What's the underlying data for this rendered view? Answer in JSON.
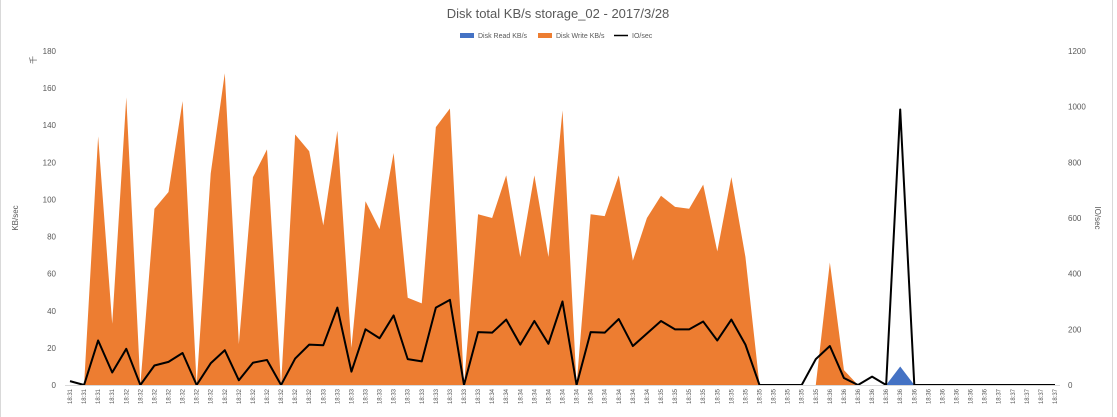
{
  "chart_data": {
    "type": "area",
    "title": "Disk total KB/s storage_02 - 2017/3/28",
    "ylabel": "KB/sec",
    "y2label": "IO/sec",
    "y_unit": "千",
    "ylim": [
      0,
      180
    ],
    "y2lim": [
      0,
      1200
    ],
    "yticks": [
      0,
      20,
      40,
      60,
      80,
      100,
      120,
      140,
      160,
      180
    ],
    "y2ticks": [
      0,
      200,
      400,
      600,
      800,
      1000,
      1200
    ],
    "legend_position": "top",
    "categories": [
      "18:31",
      "18:31",
      "18:31",
      "18:31",
      "18:32",
      "18:32",
      "18:32",
      "18:32",
      "18:32",
      "18:32",
      "18:32",
      "18:32",
      "18:32",
      "18:32",
      "18:32",
      "18:32",
      "18:32",
      "18:32",
      "18:33",
      "18:33",
      "18:33",
      "18:33",
      "18:33",
      "18:33",
      "18:33",
      "18:33",
      "18:33",
      "18:33",
      "18:33",
      "18:33",
      "18:34",
      "18:34",
      "18:34",
      "18:34",
      "18:34",
      "18:34",
      "18:34",
      "18:34",
      "18:34",
      "18:34",
      "18:34",
      "18:34",
      "18:35",
      "18:35",
      "18:35",
      "18:35",
      "18:35",
      "18:35",
      "18:35",
      "18:35",
      "18:35",
      "18:35",
      "18:35",
      "18:35",
      "18:36",
      "18:36",
      "18:36",
      "18:36",
      "18:36",
      "18:36",
      "18:36",
      "18:36",
      "18:36",
      "18:36",
      "18:36",
      "18:36",
      "18:37",
      "18:37",
      "18:37",
      "18:37",
      "18:37"
    ],
    "series": [
      {
        "name": "Disk Read KB/s",
        "type": "area",
        "axis": "left",
        "color": "#4472C4",
        "values": [
          0,
          0,
          0,
          0,
          0,
          0,
          0,
          0,
          0,
          0,
          0,
          0,
          0,
          0,
          0,
          0,
          0,
          0,
          0,
          0,
          0,
          0,
          0,
          0,
          0,
          0,
          0,
          0,
          0,
          0,
          0,
          0,
          0,
          0,
          0,
          0,
          0,
          0,
          0,
          0,
          0,
          0,
          0,
          0,
          0,
          0,
          0,
          0,
          0,
          0,
          0,
          0,
          0,
          0,
          0,
          0,
          0,
          0,
          0,
          0,
          0,
          0,
          0,
          0,
          0,
          0,
          0,
          0,
          0,
          0,
          0
        ]
      },
      {
        "name": "Disk Write KB/s",
        "type": "area",
        "axis": "left",
        "color": "#ED7D31",
        "values": [
          0,
          0,
          134,
          33,
          155,
          0,
          95,
          104,
          153,
          0,
          114,
          168,
          22,
          112,
          127,
          0,
          135,
          126,
          86,
          137,
          20,
          99,
          84,
          125,
          47,
          44,
          139,
          149,
          0,
          92,
          90,
          113,
          69,
          113,
          69,
          148,
          0,
          92,
          91,
          113,
          67,
          90,
          102,
          96,
          95,
          108,
          72,
          112,
          69,
          0,
          0,
          0,
          0,
          0,
          66,
          8,
          0,
          0,
          0,
          0,
          0,
          0,
          0,
          0,
          0,
          0,
          0,
          0,
          0,
          0,
          0
        ]
      },
      {
        "name": "IO/sec",
        "type": "line",
        "axis": "right",
        "color": "#000000",
        "values": [
          14,
          0,
          160,
          45,
          130,
          0,
          70,
          83,
          115,
          0,
          78,
          125,
          17,
          80,
          90,
          0,
          95,
          145,
          143,
          278,
          48,
          200,
          168,
          250,
          93,
          85,
          278,
          306,
          0,
          190,
          188,
          235,
          145,
          230,
          148,
          300,
          0,
          190,
          188,
          237,
          140,
          185,
          230,
          200,
          200,
          228,
          160,
          235,
          145,
          0,
          0,
          0,
          0,
          93,
          140,
          25,
          0,
          30,
          0,
          0,
          0,
          0,
          0,
          0,
          0,
          0,
          0,
          0,
          0,
          0,
          0
        ]
      }
    ],
    "read_spike": {
      "index": 59,
      "value": 10
    },
    "io_spike": {
      "index": 59,
      "value": 990
    }
  }
}
